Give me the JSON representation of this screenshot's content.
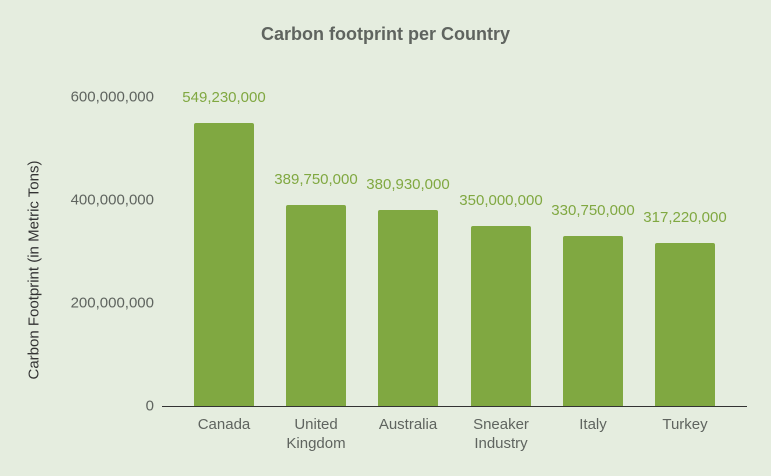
{
  "chart_data": {
    "type": "bar",
    "title": "Carbon footprint per Country",
    "xlabel": "",
    "ylabel": "Carbon Footprint (in Metric Tons)",
    "categories": [
      "Canada",
      "United Kingdom",
      "Australia",
      "Sneaker Industry",
      "Italy",
      "Turkey"
    ],
    "values": [
      549230000,
      389750000,
      380930000,
      350000000,
      330750000,
      317220000
    ],
    "value_labels": [
      "549,230,000",
      "389,750,000",
      "380,930,000",
      "350,000,000",
      "330,750,000",
      "317,220,000"
    ],
    "yticks": [
      "0",
      "200,000,000",
      "400,000,000",
      "600,000,000"
    ],
    "ylim": [
      0,
      600000000
    ],
    "grid": false,
    "legend": null,
    "bar_color": "#80a841"
  }
}
